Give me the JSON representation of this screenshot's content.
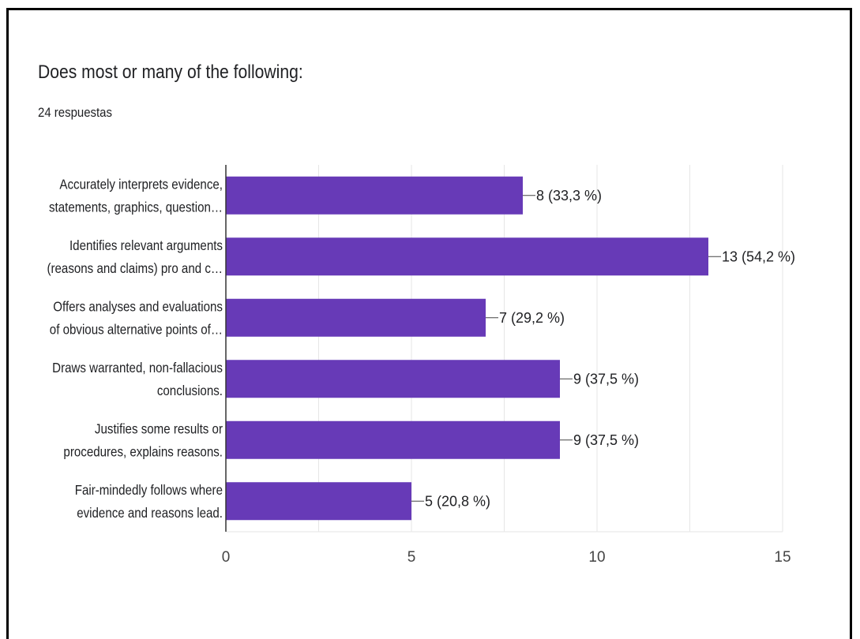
{
  "question": {
    "title": "Does most or many of the following:",
    "responses": "24 respuestas"
  },
  "chart_data": {
    "type": "bar",
    "orientation": "horizontal",
    "categories": [
      [
        "Accurately interprets evidence,",
        "statements, graphics, question…"
      ],
      [
        "Identifies relevant arguments",
        "(reasons and claims) pro and c…"
      ],
      [
        "Offers analyses and evaluations",
        "of obvious alternative points of…"
      ],
      [
        "Draws warranted, non-fallacious",
        "conclusions."
      ],
      [
        "Justifies some results or",
        "procedures, explains reasons."
      ],
      [
        "Fair-mindedly follows where",
        "evidence and reasons lead."
      ]
    ],
    "values": [
      8,
      13,
      7,
      9,
      9,
      5
    ],
    "data_labels": [
      "8 (33,3 %)",
      "13 (54,2 %)",
      "7 (29,2 %)",
      "9 (37,5 %)",
      "9 (37,5 %)",
      "5 (20,8 %)"
    ],
    "xlim": [
      0,
      15
    ],
    "xticks": [
      0,
      5,
      10,
      15
    ],
    "grid": true,
    "bar_color": "#673ab7"
  }
}
